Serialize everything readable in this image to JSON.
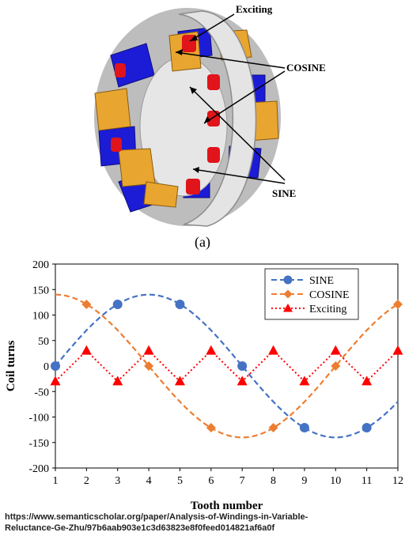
{
  "figure_a": {
    "labels": {
      "exciting": "Exciting",
      "cosine": "COSINE",
      "sine": "SINE"
    },
    "colors": {
      "sine_coil": "#1c1cd6",
      "cosine_coil": "#e8a630",
      "exciting_coil": "#e0141a",
      "rotor": "#d8d8d8"
    }
  },
  "caption_a": "(a)",
  "chart_data": {
    "type": "line",
    "title": "",
    "xlabel": "Tooth number",
    "ylabel": "Coil turns",
    "xlim": [
      1,
      12
    ],
    "ylim": [
      -200,
      200
    ],
    "x_ticks": [
      1,
      2,
      3,
      4,
      5,
      6,
      7,
      8,
      9,
      10,
      11,
      12
    ],
    "y_ticks": [
      -200,
      -150,
      -100,
      -50,
      0,
      50,
      100,
      150,
      200
    ],
    "grid": false,
    "legend_position": "top-right",
    "series": [
      {
        "name": "SINE",
        "color": "#4472c4",
        "line_style": "dashed",
        "marker": "circle",
        "curve_amplitude": 140,
        "points": [
          {
            "x": 1,
            "y": 0
          },
          {
            "x": 3,
            "y": 121
          },
          {
            "x": 5,
            "y": 121
          },
          {
            "x": 7,
            "y": 0
          },
          {
            "x": 9,
            "y": -121
          },
          {
            "x": 11,
            "y": -121
          }
        ]
      },
      {
        "name": "COSINE",
        "color": "#ed7d31",
        "line_style": "dashed",
        "marker": "diamond",
        "curve_amplitude": 140,
        "points": [
          {
            "x": 2,
            "y": 121
          },
          {
            "x": 4,
            "y": 0
          },
          {
            "x": 6,
            "y": -121
          },
          {
            "x": 8,
            "y": -121
          },
          {
            "x": 10,
            "y": 0
          },
          {
            "x": 12,
            "y": 121
          }
        ]
      },
      {
        "name": "Exciting",
        "color": "#ff0000",
        "line_style": "dotted",
        "marker": "triangle",
        "points": [
          {
            "x": 1,
            "y": -30
          },
          {
            "x": 2,
            "y": 30
          },
          {
            "x": 3,
            "y": -30
          },
          {
            "x": 4,
            "y": 30
          },
          {
            "x": 5,
            "y": -30
          },
          {
            "x": 6,
            "y": 30
          },
          {
            "x": 7,
            "y": -30
          },
          {
            "x": 8,
            "y": 30
          },
          {
            "x": 9,
            "y": -30
          },
          {
            "x": 10,
            "y": 30
          },
          {
            "x": 11,
            "y": -30
          },
          {
            "x": 12,
            "y": 30
          }
        ]
      }
    ]
  },
  "source": {
    "line1": "https://www.semanticscholar.org/paper/Analysis-of-Windings-in-Variable-",
    "line2": "Reluctance-Ge-Zhu/97b6aab903e1c3d63823e8f0feed014821af6a0f"
  }
}
